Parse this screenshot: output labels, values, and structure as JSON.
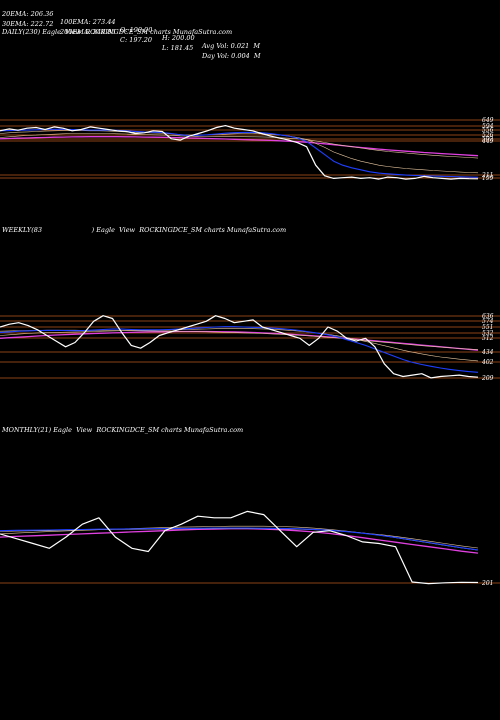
{
  "header": {
    "row1": [
      "20EMA: 206.36",
      "100EMA: 273.44",
      "O: 190.00",
      "H: 200.00",
      "Avg Vol: 0.021  M"
    ],
    "row2": [
      "30EMA: 222.72",
      "200EMA: 349.85",
      "C: 197.20",
      "L: 181.45",
      "Day Vol: 0.004  M"
    ]
  },
  "colors": {
    "price": "#ffffff",
    "ema_blue": "#1e3fff",
    "ema_magenta": "#e040e0",
    "ema_thin": "#e8c8a0",
    "level_line": "#b8541a",
    "background": "#000000"
  },
  "chart_data": [
    {
      "type": "line",
      "title": "DAILY(230) Eagle  View  ROCKINGDCE_SM charts MunafaSutra.com",
      "price_levels": [
        "649",
        "594",
        "556",
        "526",
        "502",
        "449",
        "211",
        "199"
      ],
      "series": [
        {
          "values": [
            560,
            575,
            565,
            580,
            585,
            570,
            590,
            580,
            560,
            570,
            590,
            580,
            570,
            560,
            555,
            540,
            545,
            560,
            555,
            500,
            490,
            520,
            540,
            560,
            585,
            600,
            580,
            570,
            560,
            540,
            520,
            505,
            490,
            470,
            440,
            300,
            220,
            200,
            205,
            210,
            200,
            205,
            195,
            210,
            205,
            195,
            200,
            215,
            205,
            200,
            195,
            200,
            198,
            197
          ]
        },
        {
          "values": [
            560,
            562,
            564,
            566,
            568,
            570,
            572,
            572,
            570,
            568,
            566,
            566,
            566,
            564,
            560,
            556,
            552,
            550,
            548,
            540,
            530,
            525,
            526,
            530,
            536,
            542,
            546,
            548,
            548,
            546,
            540,
            530,
            520,
            505,
            480,
            430,
            380,
            330,
            300,
            280,
            265,
            250,
            240,
            235,
            230,
            225,
            222,
            220,
            218,
            216,
            214,
            212,
            210,
            208
          ]
        },
        {
          "values": [
            540,
            545,
            550,
            552,
            555,
            558,
            560,
            562,
            562,
            562,
            560,
            560,
            558,
            556,
            552,
            548,
            546,
            544,
            542,
            538,
            532,
            528,
            528,
            530,
            532,
            535,
            538,
            540,
            540,
            538,
            534,
            528,
            520,
            510,
            495,
            465,
            435,
            400,
            375,
            350,
            330,
            315,
            300,
            290,
            282,
            275,
            270,
            265,
            260,
            256,
            252,
            248,
            245,
            242
          ]
        },
        {
          "values": [
            510,
            515,
            520,
            525,
            528,
            532,
            535,
            538,
            540,
            540,
            540,
            540,
            540,
            538,
            536,
            534,
            532,
            530,
            528,
            526,
            522,
            520,
            518,
            517,
            516,
            516,
            516,
            516,
            515,
            514,
            512,
            508,
            504,
            500,
            494,
            484,
            472,
            460,
            450,
            440,
            430,
            420,
            412,
            404,
            398,
            392,
            386,
            380,
            375,
            370,
            366,
            362,
            358,
            354
          ]
        },
        {
          "values": [
            500,
            502,
            504,
            506,
            508,
            510,
            512,
            513,
            514,
            515,
            516,
            516,
            516,
            516,
            515,
            514,
            513,
            512,
            511,
            510,
            508,
            506,
            504,
            502,
            500,
            498,
            496,
            494,
            492,
            490,
            488,
            485,
            482,
            478,
            474,
            468,
            462,
            455,
            448,
            441,
            434,
            428,
            422,
            416,
            411,
            406,
            401,
            396,
            392,
            388,
            384,
            380,
            376,
            372
          ]
        }
      ]
    },
    {
      "type": "line",
      "title": "WEEKLY(83                        ) Eagle  View  ROCKINGDCE_SM charts MunafaSutra.com",
      "price_levels": [
        "636",
        "574",
        "551",
        "532",
        "512",
        "434",
        "402",
        "209"
      ],
      "series": [
        {
          "values": [
            560,
            580,
            590,
            570,
            540,
            500,
            460,
            420,
            450,
            520,
            600,
            640,
            620,
            520,
            430,
            410,
            450,
            500,
            520,
            540,
            560,
            580,
            600,
            640,
            620,
            590,
            600,
            610,
            560,
            540,
            520,
            500,
            480,
            430,
            480,
            560,
            530,
            480,
            460,
            480,
            420,
            300,
            230,
            210,
            220,
            230,
            200,
            210,
            215,
            220,
            210,
            205
          ]
        },
        {
          "values": [
            520,
            525,
            530,
            532,
            535,
            536,
            536,
            535,
            534,
            535,
            538,
            542,
            545,
            545,
            542,
            540,
            540,
            540,
            542,
            545,
            548,
            552,
            556,
            560,
            562,
            562,
            560,
            558,
            555,
            552,
            548,
            542,
            535,
            525,
            515,
            505,
            490,
            470,
            450,
            430,
            405,
            380,
            355,
            330,
            310,
            295,
            282,
            270,
            260,
            252,
            245,
            240
          ]
        },
        {
          "values": [
            500,
            505,
            510,
            514,
            518,
            520,
            522,
            523,
            524,
            526,
            528,
            530,
            532,
            534,
            535,
            536,
            536,
            537,
            538,
            540,
            542,
            544,
            546,
            548,
            550,
            550,
            550,
            548,
            546,
            544,
            540,
            536,
            530,
            524,
            516,
            508,
            498,
            486,
            472,
            458,
            444,
            428,
            412,
            396,
            382,
            370,
            358,
            348,
            340,
            332,
            326,
            320
          ]
        },
        {
          "values": [
            530,
            532,
            534,
            535,
            536,
            537,
            537,
            537,
            537,
            536,
            536,
            535,
            535,
            534,
            534,
            533,
            532,
            531,
            530,
            529,
            528,
            527,
            526,
            524,
            522,
            520,
            518,
            516,
            514,
            511,
            508,
            505,
            501,
            497,
            492,
            487,
            482,
            476,
            470,
            464,
            458,
            452,
            446,
            440,
            434,
            428,
            423,
            418,
            413,
            408,
            404,
            400
          ]
        },
        {
          "values": [
            480,
            484,
            488,
            492,
            496,
            500,
            503,
            506,
            509,
            512,
            514,
            516,
            518,
            520,
            522,
            524,
            525,
            526,
            527,
            528,
            528,
            528,
            528,
            527,
            526,
            525,
            523,
            521,
            518,
            515,
            512,
            508,
            504,
            500,
            495,
            490,
            485,
            480,
            474,
            468,
            462,
            456,
            450,
            444,
            438,
            432,
            426,
            420,
            414,
            408,
            402,
            396
          ]
        }
      ]
    },
    {
      "type": "line",
      "title": "MONTHLY(21) Eagle  View  ROCKINGDCE_SM charts MunafaSutra.com",
      "price_levels": [
        "201"
      ],
      "series": [
        {
          "values": [
            500,
            470,
            440,
            410,
            480,
            560,
            600,
            480,
            410,
            390,
            520,
            560,
            610,
            600,
            600,
            640,
            620,
            520,
            420,
            510,
            520,
            490,
            450,
            440,
            420,
            200,
            190,
            195,
            198,
            197
          ]
        },
        {
          "values": [
            520,
            522,
            523,
            524,
            526,
            527,
            529,
            530,
            531,
            532,
            533,
            534,
            535,
            536,
            536,
            536,
            535,
            534,
            532,
            528,
            522,
            514,
            504,
            492,
            478,
            462,
            446,
            430,
            414,
            400
          ]
        },
        {
          "values": [
            515,
            517,
            519,
            520,
            522,
            524,
            526,
            527,
            528,
            529,
            530,
            531,
            532,
            533,
            533,
            533,
            532,
            531,
            529,
            526,
            521,
            514,
            506,
            496,
            484,
            470,
            455,
            440,
            425,
            412
          ]
        },
        {
          "values": [
            500,
            505,
            510,
            514,
            518,
            522,
            526,
            530,
            533,
            536,
            539,
            542,
            544,
            546,
            548,
            548,
            548,
            546,
            542,
            536,
            528,
            518,
            506,
            492,
            476,
            460,
            444,
            428,
            412,
            398
          ]
        },
        {
          "values": [
            480,
            484,
            488,
            492,
            496,
            500,
            504,
            508,
            512,
            516,
            520,
            524,
            528,
            530,
            532,
            532,
            530,
            526,
            520,
            512,
            502,
            490,
            476,
            462,
            448,
            434,
            420,
            406,
            392,
            380
          ]
        }
      ]
    }
  ]
}
